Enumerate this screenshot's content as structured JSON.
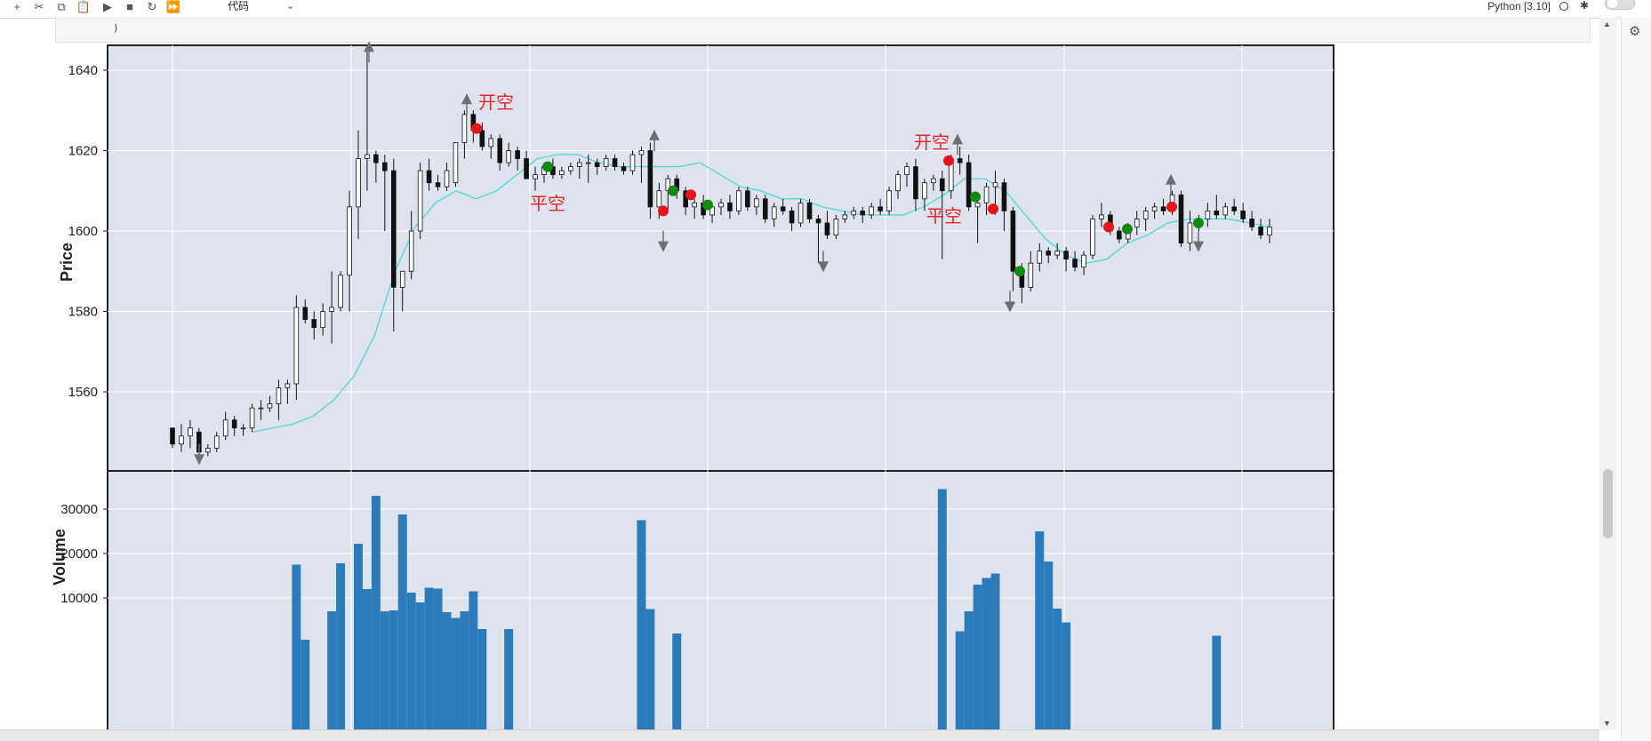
{
  "toolbar": {
    "buttons": [
      {
        "name": "add-cell-button",
        "icon": "plus-icon",
        "glyph": "+"
      },
      {
        "name": "cut-button",
        "icon": "scissors-icon",
        "glyph": "✂"
      },
      {
        "name": "copy-button",
        "icon": "copy-icon",
        "glyph": "⧉"
      },
      {
        "name": "paste-button",
        "icon": "clipboard-icon",
        "glyph": "📋"
      },
      {
        "name": "run-button",
        "icon": "play-icon",
        "glyph": "▶"
      },
      {
        "name": "stop-button",
        "icon": "stop-icon",
        "glyph": "■"
      },
      {
        "name": "restart-button",
        "icon": "restart-icon",
        "glyph": "↻"
      },
      {
        "name": "run-all-button",
        "icon": "fast-forward-icon",
        "glyph": "⏩"
      }
    ],
    "cell_type": "代码",
    "kernel": "Python [3.10]"
  },
  "code_cell": {
    "visible_line": ")"
  },
  "chart_data": {
    "type": "candlestick",
    "ylabel": "Price",
    "volume_label": "Volume",
    "price_ticks": [
      1560,
      1580,
      1600,
      1620,
      1640
    ],
    "volume_ticks": [
      10000,
      20000,
      30000
    ],
    "volume_ylim": [
      0,
      40000
    ],
    "ohlc_sampled": [
      [
        1551,
        1551,
        1546,
        1547
      ],
      [
        1547,
        1552,
        1545,
        1549
      ],
      [
        1549,
        1553,
        1546,
        1551
      ],
      [
        1550,
        1551,
        1543,
        1545
      ],
      [
        1545,
        1547,
        1544,
        1546
      ],
      [
        1546,
        1550,
        1545,
        1549
      ],
      [
        1549,
        1555,
        1548,
        1553
      ],
      [
        1553,
        1554,
        1549,
        1551
      ],
      [
        1551,
        1552,
        1549,
        1551
      ],
      [
        1551,
        1557,
        1550,
        1556
      ],
      [
        1556,
        1558,
        1553,
        1556
      ],
      [
        1556,
        1559,
        1555,
        1557
      ],
      [
        1557,
        1563,
        1553,
        1561
      ],
      [
        1561,
        1563,
        1557,
        1562
      ],
      [
        1562,
        1584,
        1558,
        1581
      ],
      [
        1581,
        1583,
        1577,
        1578
      ],
      [
        1578,
        1580,
        1573,
        1576
      ],
      [
        1576,
        1582,
        1574,
        1580
      ],
      [
        1580,
        1590,
        1572,
        1581
      ],
      [
        1581,
        1590,
        1580,
        1589
      ],
      [
        1589,
        1610,
        1580,
        1606
      ],
      [
        1606,
        1625,
        1598,
        1618
      ],
      [
        1618,
        1645,
        1610,
        1619
      ],
      [
        1619,
        1620,
        1612,
        1617
      ],
      [
        1617,
        1619,
        1600,
        1615
      ],
      [
        1615,
        1618,
        1575,
        1586
      ],
      [
        1586,
        1590,
        1580,
        1590
      ],
      [
        1590,
        1605,
        1588,
        1600
      ],
      [
        1600,
        1617,
        1598,
        1615
      ],
      [
        1615,
        1618,
        1610,
        1612
      ],
      [
        1612,
        1614,
        1610,
        1611
      ],
      [
        1611,
        1617,
        1610,
        1615
      ],
      [
        1612,
        1622,
        1611,
        1622
      ],
      [
        1622,
        1630,
        1618,
        1629
      ],
      [
        1629,
        1630,
        1622,
        1625
      ],
      [
        1625,
        1627,
        1620,
        1621
      ],
      [
        1621,
        1624,
        1618,
        1623
      ],
      [
        1623,
        1624,
        1615,
        1617
      ],
      [
        1617,
        1622,
        1616,
        1620
      ],
      [
        1620,
        1621,
        1615,
        1618
      ],
      [
        1618,
        1620,
        1614,
        1613
      ],
      [
        1613,
        1616,
        1610,
        1614
      ],
      [
        1614,
        1617,
        1612,
        1616
      ],
      [
        1616,
        1618,
        1613,
        1614
      ],
      [
        1614,
        1616,
        1613,
        1615
      ],
      [
        1615,
        1617,
        1614,
        1616
      ],
      [
        1616,
        1618,
        1613,
        1617
      ],
      [
        1617,
        1619,
        1612,
        1617
      ],
      [
        1617,
        1618,
        1614,
        1616
      ],
      [
        1616,
        1619,
        1615,
        1618
      ],
      [
        1618,
        1619,
        1615,
        1616
      ],
      [
        1616,
        1617,
        1614,
        1615
      ],
      [
        1615,
        1620,
        1614,
        1619
      ],
      [
        1619,
        1621,
        1612,
        1620
      ],
      [
        1620,
        1622,
        1603,
        1606
      ],
      [
        1606,
        1612,
        1603,
        1610
      ],
      [
        1610,
        1614,
        1605,
        1613
      ],
      [
        1613,
        1614,
        1608,
        1610
      ],
      [
        1610,
        1611,
        1604,
        1606
      ],
      [
        1606,
        1608,
        1603,
        1607
      ],
      [
        1607,
        1609,
        1603,
        1604
      ],
      [
        1604,
        1607,
        1602,
        1606
      ],
      [
        1606,
        1608,
        1604,
        1607
      ],
      [
        1607,
        1609,
        1603,
        1605
      ],
      [
        1605,
        1611,
        1604,
        1610
      ],
      [
        1610,
        1611,
        1605,
        1606
      ],
      [
        1606,
        1609,
        1604,
        1608
      ],
      [
        1608,
        1609,
        1602,
        1603
      ],
      [
        1603,
        1607,
        1601,
        1606
      ],
      [
        1606,
        1608,
        1604,
        1605
      ],
      [
        1605,
        1606,
        1600,
        1602
      ],
      [
        1602,
        1608,
        1601,
        1607
      ],
      [
        1607,
        1608,
        1602,
        1603
      ],
      [
        1603,
        1604,
        1592,
        1602
      ],
      [
        1602,
        1605,
        1598,
        1599
      ],
      [
        1599,
        1604,
        1598,
        1603
      ],
      [
        1603,
        1605,
        1602,
        1604
      ],
      [
        1604,
        1606,
        1603,
        1605
      ],
      [
        1605,
        1606,
        1602,
        1604
      ],
      [
        1604,
        1607,
        1603,
        1606
      ],
      [
        1606,
        1608,
        1604,
        1605
      ],
      [
        1605,
        1611,
        1604,
        1610
      ],
      [
        1610,
        1615,
        1608,
        1614
      ],
      [
        1614,
        1617,
        1611,
        1616
      ],
      [
        1616,
        1618,
        1605,
        1608
      ],
      [
        1608,
        1613,
        1605,
        1612
      ],
      [
        1612,
        1614,
        1610,
        1613
      ],
      [
        1613,
        1615,
        1593,
        1610
      ],
      [
        1610,
        1619,
        1608,
        1618
      ],
      [
        1618,
        1621,
        1614,
        1617
      ],
      [
        1617,
        1619,
        1605,
        1606
      ],
      [
        1606,
        1609,
        1597,
        1607
      ],
      [
        1607,
        1612,
        1604,
        1611
      ],
      [
        1611,
        1615,
        1604,
        1612
      ],
      [
        1612,
        1613,
        1600,
        1605
      ],
      [
        1605,
        1606,
        1585,
        1590
      ],
      [
        1590,
        1592,
        1582,
        1586
      ],
      [
        1586,
        1595,
        1585,
        1592
      ],
      [
        1592,
        1597,
        1590,
        1595
      ],
      [
        1595,
        1596,
        1592,
        1594
      ],
      [
        1594,
        1597,
        1593,
        1595
      ],
      [
        1595,
        1596,
        1590,
        1593
      ],
      [
        1593,
        1595,
        1590,
        1591
      ],
      [
        1591,
        1595,
        1589,
        1594
      ],
      [
        1594,
        1604,
        1593,
        1603
      ],
      [
        1603,
        1607,
        1601,
        1604
      ],
      [
        1604,
        1605,
        1599,
        1600
      ],
      [
        1600,
        1601,
        1597,
        1598
      ],
      [
        1598,
        1602,
        1597,
        1601
      ],
      [
        1601,
        1605,
        1599,
        1603
      ],
      [
        1603,
        1606,
        1600,
        1605
      ],
      [
        1605,
        1607,
        1603,
        1606
      ],
      [
        1606,
        1608,
        1604,
        1605
      ],
      [
        1605,
        1610,
        1604,
        1609
      ],
      [
        1609,
        1610,
        1596,
        1597
      ],
      [
        1597,
        1605,
        1595,
        1602
      ],
      [
        1602,
        1604,
        1600,
        1603
      ],
      [
        1603,
        1607,
        1601,
        1605
      ],
      [
        1605,
        1609,
        1603,
        1604
      ],
      [
        1604,
        1607,
        1603,
        1606
      ],
      [
        1606,
        1608,
        1604,
        1605
      ],
      [
        1605,
        1607,
        1602,
        1603
      ],
      [
        1603,
        1605,
        1600,
        1601
      ],
      [
        1601,
        1603,
        1598,
        1599
      ],
      [
        1599,
        1603,
        1597,
        1601
      ]
    ],
    "volume_sampled": [
      0,
      0,
      0,
      0,
      0,
      0,
      0,
      0,
      0,
      0,
      0,
      0,
      0,
      0,
      17500,
      600,
      0,
      0,
      7000,
      17800,
      0,
      22200,
      12000,
      33000,
      7000,
      7200,
      28800,
      11200,
      9000,
      12300,
      12100,
      6800,
      5500,
      7000,
      11500,
      3000,
      0,
      0,
      3000,
      0,
      0,
      0,
      0,
      0,
      0,
      0,
      0,
      0,
      0,
      0,
      0,
      0,
      0,
      27500,
      7500,
      0,
      0,
      2000,
      0,
      0,
      0,
      0,
      0,
      0,
      0,
      0,
      0,
      0,
      0,
      0,
      0,
      0,
      0,
      0,
      0,
      0,
      0,
      0,
      0,
      0,
      0,
      0,
      0,
      0,
      0,
      0,
      0,
      34500,
      0,
      2500,
      7000,
      13000,
      14500,
      15500,
      0,
      0,
      0,
      0,
      25000,
      18200,
      7600,
      4500,
      0,
      0,
      0,
      0,
      0,
      0,
      0,
      0,
      0,
      0,
      0,
      0,
      0,
      0,
      0,
      0,
      1500,
      0,
      0,
      0,
      0,
      0,
      0,
      0
    ],
    "ma_line_sampled": [
      1550,
      1551,
      1552,
      1554,
      1558,
      1564,
      1574,
      1590,
      1601,
      1607,
      1610,
      1608,
      1610,
      1614,
      1618,
      1619,
      1619,
      1617,
      1616,
      1616,
      1616,
      1616,
      1617,
      1614,
      1611,
      1610,
      1608,
      1608,
      1606,
      1605,
      1604,
      1604,
      1604,
      1606,
      1609,
      1613,
      1613,
      1610,
      1604,
      1598,
      1594,
      1592,
      1593,
      1597,
      1599,
      1602,
      1603,
      1603,
      1603,
      1602,
      1601
    ],
    "annotations": [
      {
        "text": "开空",
        "x": 558,
        "y": 116
      },
      {
        "text": "平空",
        "x": 616,
        "y": 230
      },
      {
        "text": "开空",
        "x": 1048,
        "y": 161
      },
      {
        "text": "平空",
        "x": 1062,
        "y": 244
      }
    ],
    "arrows_up": [
      {
        "x": 415,
        "value": 1645
      },
      {
        "x": 525,
        "value": 1632
      },
      {
        "x": 736,
        "value": 1623
      },
      {
        "x": 1077,
        "value": 1622
      },
      {
        "x": 1317,
        "value": 1612
      }
    ],
    "arrows_down": [
      {
        "x": 224,
        "value": 1544
      },
      {
        "x": 746,
        "value": 1597
      },
      {
        "x": 926,
        "value": 1592
      },
      {
        "x": 1136,
        "value": 1582
      },
      {
        "x": 1348,
        "value": 1597
      }
    ],
    "red_markers": [
      {
        "x": 536,
        "value": 1625.5
      },
      {
        "x": 746,
        "value": 1605
      },
      {
        "x": 777,
        "value": 1609
      },
      {
        "x": 1067,
        "value": 1617.5
      },
      {
        "x": 1117,
        "value": 1605.5
      },
      {
        "x": 1247,
        "value": 1601
      },
      {
        "x": 1318,
        "value": 1606
      }
    ],
    "green_markers": [
      {
        "x": 616,
        "value": 1616
      },
      {
        "x": 757,
        "value": 1610
      },
      {
        "x": 796,
        "value": 1606.5
      },
      {
        "x": 1097,
        "value": 1608.5
      },
      {
        "x": 1147,
        "value": 1590
      },
      {
        "x": 1268,
        "value": 1600.5
      },
      {
        "x": 1348,
        "value": 1602
      }
    ],
    "colors": {
      "bg": "#dfe3ee",
      "up": "#ffffff",
      "down": "#111111",
      "ma": "#5ad9d6",
      "volume": "#2b7bba",
      "red": "#e8131b",
      "green": "#118a11",
      "arrow": "#6e6e6e"
    }
  }
}
